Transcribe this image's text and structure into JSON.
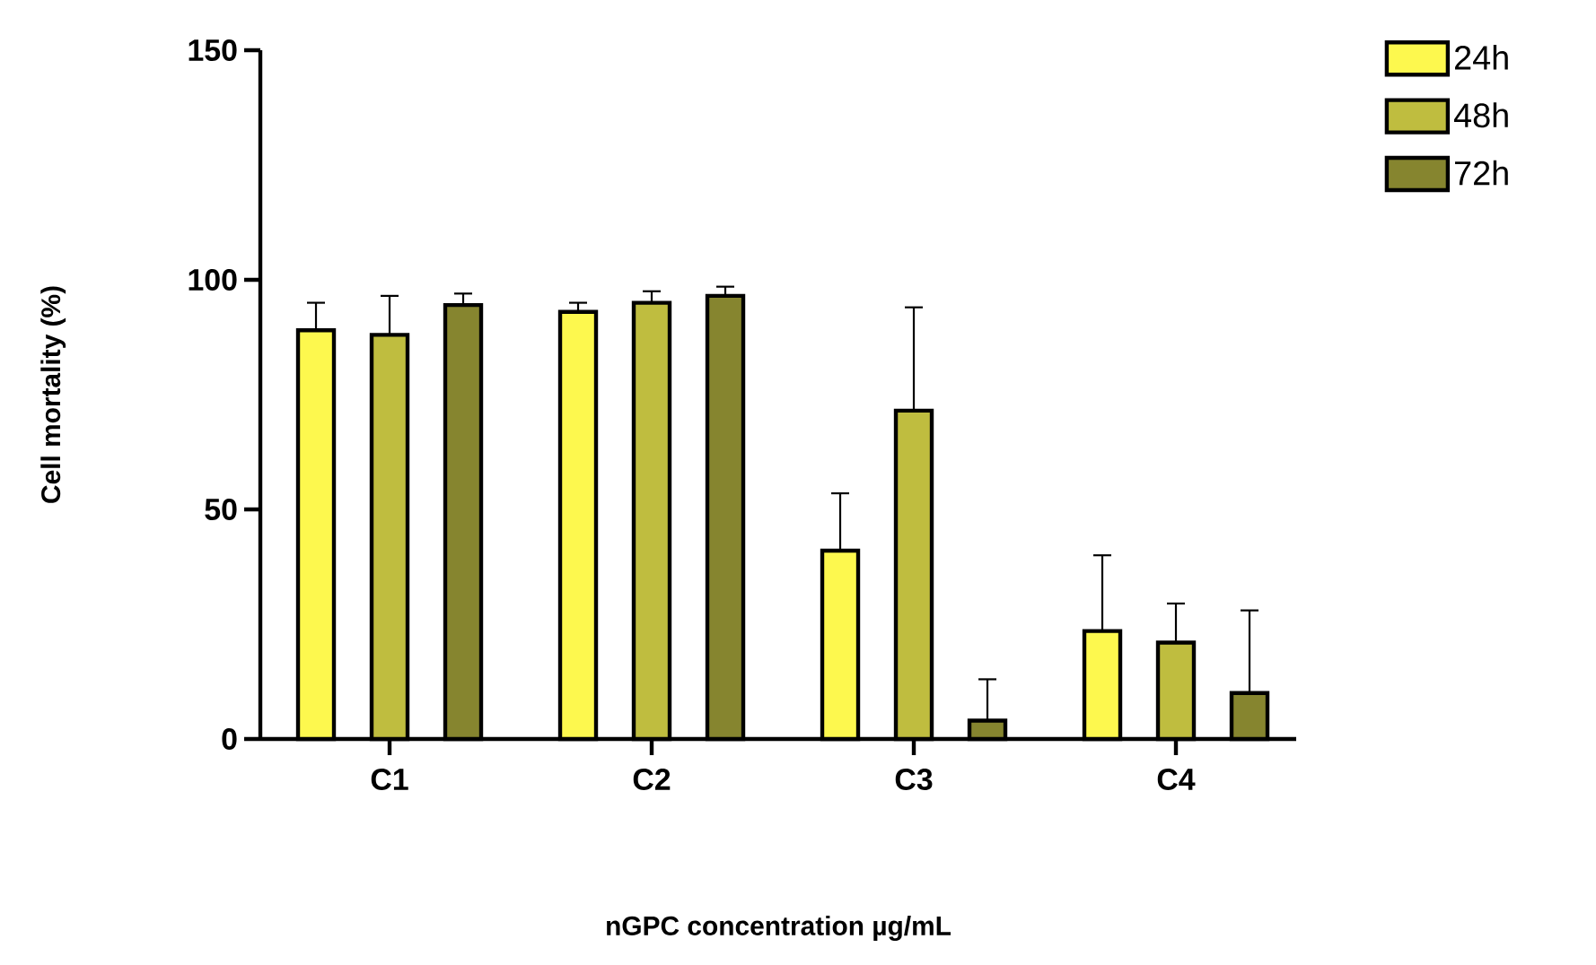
{
  "chart_data": {
    "type": "bar",
    "xlabel": "nGPC concentration µg/mL",
    "ylabel": "Cell mortality (%)",
    "categories": [
      "C1",
      "C2",
      "C3",
      "C4"
    ],
    "series": [
      {
        "name": "24h",
        "color": "#fdf84e",
        "values": [
          89,
          93,
          41,
          23.5
        ],
        "errors": [
          [
            89,
            95
          ],
          [
            93,
            95
          ],
          [
            41,
            53.5
          ],
          [
            23.5,
            40
          ]
        ]
      },
      {
        "name": "48h",
        "color": "#bfbd3f",
        "values": [
          88,
          95,
          71.5,
          21
        ],
        "errors": [
          [
            88,
            96.5
          ],
          [
            95,
            97.5
          ],
          [
            71.5,
            94
          ],
          [
            21,
            29.5
          ]
        ]
      },
      {
        "name": "72h",
        "color": "#86852f",
        "values": [
          94.5,
          96.5,
          4,
          10
        ],
        "errors": [
          [
            94.5,
            97
          ],
          [
            96.5,
            98.5
          ],
          [
            4,
            13
          ],
          [
            10,
            28
          ]
        ]
      }
    ],
    "ylim": [
      0,
      150
    ],
    "yticks": [
      0,
      50,
      100,
      150
    ],
    "grid": false,
    "legend": "right"
  }
}
